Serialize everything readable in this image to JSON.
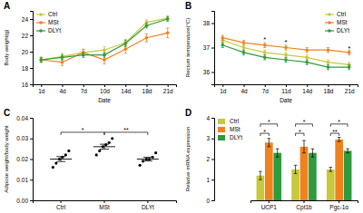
{
  "chart_data": [
    {
      "panel": "A",
      "type": "line",
      "y_label": "Body weight(g)",
      "x_label": "Date",
      "categories": [
        "1d",
        "4d",
        "7d",
        "10d",
        "14d",
        "18d",
        "21d"
      ],
      "ylim": [
        16,
        25
      ],
      "yticks": [
        16,
        18,
        20,
        22,
        24
      ],
      "legend": "upper left",
      "marker": "circle",
      "series": [
        {
          "name": "Ctrl",
          "color": "#c8c83c",
          "values": [
            19.0,
            19.4,
            19.9,
            20.2,
            21.1,
            23.6,
            24.1
          ],
          "errors": [
            0.3,
            0.4,
            0.4,
            0.4,
            0.4,
            0.3,
            0.3
          ]
        },
        {
          "name": "MSt",
          "color": "#f0821e",
          "values": [
            19.0,
            18.7,
            19.9,
            19.0,
            20.3,
            21.7,
            22.3
          ],
          "errors": [
            0.3,
            0.4,
            0.4,
            0.5,
            0.5,
            0.5,
            0.6
          ]
        },
        {
          "name": "DLYt",
          "color": "#2e9b3c",
          "values": [
            19.0,
            19.3,
            19.6,
            19.6,
            21.0,
            23.2,
            24.0
          ],
          "errors": [
            0.3,
            0.3,
            0.3,
            0.3,
            0.4,
            0.3,
            0.3
          ]
        }
      ]
    },
    {
      "panel": "B",
      "type": "line",
      "y_label": "Rectum temperature(°C)",
      "x_label": "Date",
      "categories": [
        "1d",
        "4d",
        "7d",
        "11d",
        "14d",
        "18d",
        "21d"
      ],
      "ylim": [
        35.5,
        38.5
      ],
      "yticks": [
        36,
        37,
        38
      ],
      "legend": "upper right",
      "marker": "circle",
      "series": [
        {
          "name": "Ctrl",
          "color": "#c8c83c",
          "values": [
            37.3,
            37.0,
            36.8,
            36.7,
            36.6,
            36.4,
            36.3
          ],
          "errors": [
            0.1,
            0.1,
            0.1,
            0.1,
            0.1,
            0.1,
            0.1
          ]
        },
        {
          "name": "MSt",
          "color": "#f0821e",
          "values": [
            37.4,
            37.2,
            37.1,
            37.0,
            36.9,
            36.9,
            36.8
          ],
          "errors": [
            0.1,
            0.1,
            0.1,
            0.1,
            0.1,
            0.1,
            0.1
          ]
        },
        {
          "name": "DLYt",
          "color": "#2e9b3c",
          "values": [
            37.1,
            36.8,
            36.6,
            36.5,
            36.4,
            36.2,
            36.2
          ],
          "errors": [
            0.1,
            0.1,
            0.1,
            0.1,
            0.1,
            0.1,
            0.1
          ]
        }
      ],
      "annotations": [
        {
          "text": "*",
          "x": "7d",
          "y": 37.35
        },
        {
          "text": "*",
          "x": "11d",
          "y": 37.25
        },
        {
          "text": "*",
          "x": "21d",
          "y": 37.0
        }
      ]
    },
    {
      "panel": "C",
      "type": "scatter",
      "y_label": "Adipose weight/body weight",
      "categories": [
        "Ctrl",
        "MSt",
        "DLYt"
      ],
      "ylim": [
        0,
        0.04
      ],
      "yticks": [
        {
          "value": 0,
          "label": "0.00"
        },
        {
          "value": 0.01,
          "label": "0.01"
        },
        {
          "value": 0.02,
          "label": "0.02"
        },
        {
          "value": 0.03,
          "label": "0.03"
        },
        {
          "value": 0.04,
          "label": "0.04"
        }
      ],
      "marker": "circle",
      "color": "#000000",
      "values": [
        [
          0.016,
          0.018,
          0.02,
          0.021,
          0.022,
          0.024
        ],
        [
          0.022,
          0.024,
          0.026,
          0.027,
          0.028,
          0.03
        ],
        [
          0.017,
          0.019,
          0.02,
          0.02,
          0.021,
          0.023
        ]
      ],
      "means": [
        0.02,
        0.026,
        0.02
      ],
      "errors": [
        0.0012,
        0.0012,
        0.0009
      ],
      "comparisons": [
        {
          "from": "Ctrl",
          "to": "MSt",
          "text": "*",
          "y": 0.033
        },
        {
          "from": "MSt",
          "to": "DLYt",
          "text": "**",
          "y": 0.033
        }
      ]
    },
    {
      "panel": "D",
      "type": "bar",
      "y_label": "Relative mRNA expression",
      "categories": [
        "UCP1",
        "Cpt1b",
        "Pgc-1α"
      ],
      "ylim": [
        0,
        4
      ],
      "yticks": [
        0,
        1,
        2,
        3,
        4
      ],
      "legend": "upper left",
      "series": [
        {
          "name": "Ctrl",
          "color": "#c8c83c",
          "values": [
            1.2,
            1.5,
            1.5
          ],
          "errors": [
            0.2,
            0.2,
            0.1
          ]
        },
        {
          "name": "MSt",
          "color": "#f0821e",
          "values": [
            2.8,
            2.6,
            2.95
          ],
          "errors": [
            0.2,
            0.3,
            0.1
          ]
        },
        {
          "name": "DLYt",
          "color": "#2e9b3c",
          "values": [
            2.3,
            2.3,
            2.4
          ],
          "errors": [
            0.2,
            0.2,
            0.1
          ]
        }
      ],
      "comparisons": [
        {
          "category": "UCP1",
          "from": "Ctrl",
          "to": "MSt",
          "text": "*",
          "y": 3.25
        },
        {
          "category": "UCP1",
          "from": "Ctrl",
          "to": "DLYt",
          "text": "*",
          "y": 3.7
        },
        {
          "category": "Cpt1b",
          "from": "Ctrl",
          "to": "MSt",
          "text": "*",
          "y": 3.25
        },
        {
          "category": "Cpt1b",
          "from": "Ctrl",
          "to": "DLYt",
          "text": "*",
          "y": 3.7
        },
        {
          "category": "Pgc-1α",
          "from": "Ctrl",
          "to": "MSt",
          "text": "**",
          "y": 3.25
        },
        {
          "category": "Pgc-1α",
          "from": "Ctrl",
          "to": "DLYt",
          "text": "*",
          "y": 3.7
        }
      ]
    }
  ]
}
